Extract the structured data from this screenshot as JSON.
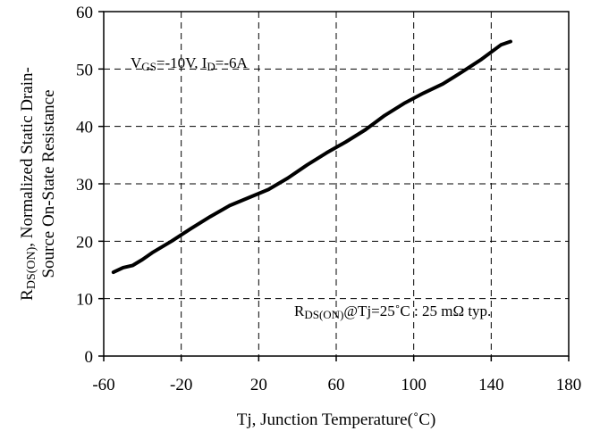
{
  "chart_data": {
    "type": "line",
    "title": "",
    "xlabel": "Tj, Junction Temperature(˚C)",
    "ylabel": {
      "line1_main": "R",
      "line1_sub": "DS(ON)",
      "line1_rest": ", Normalized Static Drain-",
      "line2": "Source On-State Resistance"
    },
    "xlim": [
      -60,
      180
    ],
    "ylim": [
      0,
      60
    ],
    "xticks": [
      -60,
      -20,
      20,
      60,
      100,
      140,
      180
    ],
    "yticks": [
      0,
      10,
      20,
      30,
      40,
      50,
      60
    ],
    "grid": true,
    "grid_style": "dashed",
    "annotations": {
      "conditions": {
        "v_main": "V",
        "v_sub": "GS",
        "v_rest": "=-10V, I",
        "i_sub": "D",
        "i_rest": "=-6A"
      },
      "typical": {
        "r_main": "R",
        "r_sub": "DS(ON)",
        "r_rest": "@Tj=25˚C : 25 mΩ typ."
      }
    },
    "series": [
      {
        "color": "#000000",
        "x": [
          -55,
          -50,
          -45,
          -40,
          -35,
          -25,
          -15,
          -5,
          5,
          15,
          25,
          35,
          45,
          55,
          65,
          75,
          85,
          95,
          105,
          115,
          125,
          135,
          145,
          150
        ],
        "y": [
          14.6,
          15.4,
          15.8,
          16.8,
          18.0,
          20.0,
          22.2,
          24.3,
          26.2,
          27.6,
          29.0,
          31.0,
          33.3,
          35.4,
          37.3,
          39.4,
          41.9,
          44.0,
          45.8,
          47.4,
          49.5,
          51.7,
          54.2,
          54.8
        ]
      }
    ]
  }
}
